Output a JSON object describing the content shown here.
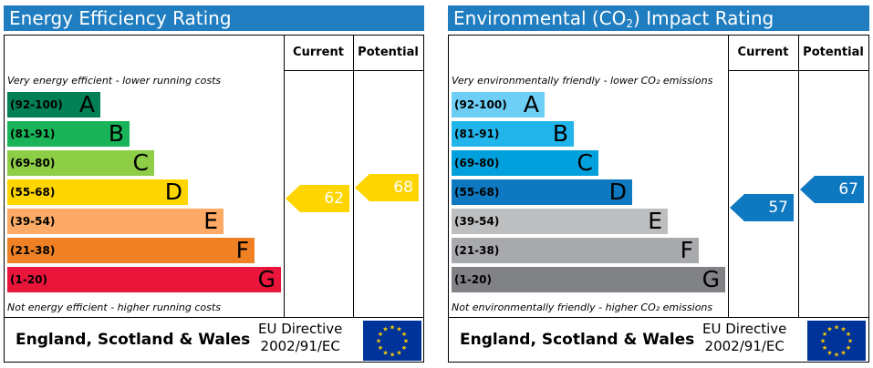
{
  "panels": [
    {
      "title": "Energy Efficiency Rating",
      "title_sub": "",
      "current_label": "Current",
      "potential_label": "Potential",
      "top_note": "Very energy efficient - lower running costs",
      "bottom_note": "Not energy efficient - higher running costs",
      "bands": [
        {
          "range": "(92-100)",
          "letter": "A",
          "color": "#008054"
        },
        {
          "range": "(81-91)",
          "letter": "B",
          "color": "#19b459"
        },
        {
          "range": "(69-80)",
          "letter": "C",
          "color": "#8dce46"
        },
        {
          "range": "(55-68)",
          "letter": "D",
          "color": "#ffd500"
        },
        {
          "range": "(39-54)",
          "letter": "E",
          "color": "#fcaa65"
        },
        {
          "range": "(21-38)",
          "letter": "F",
          "color": "#ef8023"
        },
        {
          "range": "(1-20)",
          "letter": "G",
          "color": "#e9153b"
        }
      ],
      "current": {
        "value": "62",
        "color": "#ffd500"
      },
      "potential": {
        "value": "68",
        "color": "#ffd500"
      },
      "country": "England, Scotland & Wales",
      "directive_line1": "EU Directive",
      "directive_line2": "2002/91/EC"
    },
    {
      "title": "Environmental (CO",
      "title_sub": "2",
      "title_tail": ") Impact Rating",
      "current_label": "Current",
      "potential_label": "Potential",
      "top_note": "Very environmentally friendly - lower CO₂ emissions",
      "bottom_note": "Not environmentally friendly - higher CO₂ emissions",
      "bands": [
        {
          "range": "(92-100)",
          "letter": "A",
          "color": "#6ecff6"
        },
        {
          "range": "(81-91)",
          "letter": "B",
          "color": "#22b5eb"
        },
        {
          "range": "(69-80)",
          "letter": "C",
          "color": "#00a0dc"
        },
        {
          "range": "(55-68)",
          "letter": "D",
          "color": "#0e78c0"
        },
        {
          "range": "(39-54)",
          "letter": "E",
          "color": "#bcbec0"
        },
        {
          "range": "(21-38)",
          "letter": "F",
          "color": "#a7a9ac"
        },
        {
          "range": "(1-20)",
          "letter": "G",
          "color": "#808285"
        }
      ],
      "current": {
        "value": "57",
        "color": "#0e78c0"
      },
      "potential": {
        "value": "67",
        "color": "#0e78c0"
      },
      "country": "England, Scotland & Wales",
      "directive_line1": "EU Directive",
      "directive_line2": "2002/91/EC"
    }
  ]
}
